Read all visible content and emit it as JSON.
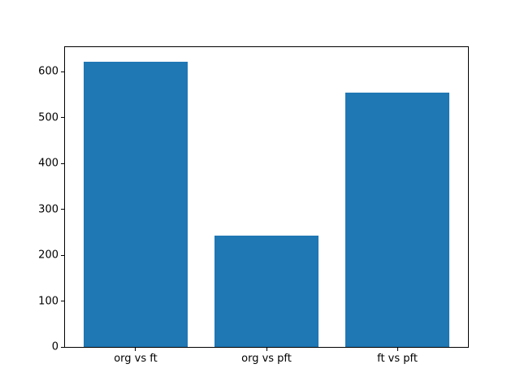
{
  "figure": {
    "background": "#ffffff",
    "title": ""
  },
  "chart_data": {
    "type": "bar",
    "categories": [
      "org vs ft",
      "org vs pft",
      "ft vs pft"
    ],
    "values": [
      623,
      243,
      554
    ],
    "title": "",
    "xlabel": "",
    "ylabel": "",
    "ylim": [
      0,
      654
    ],
    "yticks": [
      0,
      100,
      200,
      300,
      400,
      500,
      600
    ],
    "bar_color": "#1f77b4",
    "axis_color": "#000000",
    "text_color": "#000000",
    "grid": false,
    "legend": "none"
  }
}
